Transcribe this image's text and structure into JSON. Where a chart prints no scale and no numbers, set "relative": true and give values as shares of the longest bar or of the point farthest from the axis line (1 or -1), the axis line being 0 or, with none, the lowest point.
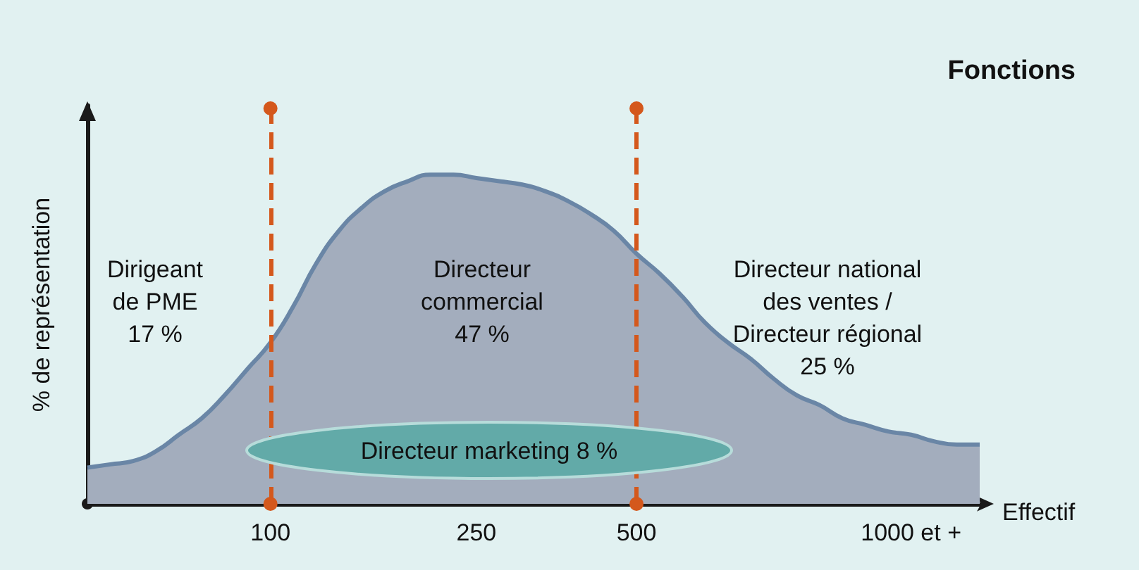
{
  "chart_data": {
    "type": "area",
    "title": "Fonctions",
    "xlabel": "Effectif",
    "ylabel": "% de représentation",
    "relative": true,
    "categories": [
      null,
      null,
      null,
      null,
      null,
      null,
      null,
      null,
      "100",
      null,
      null,
      null,
      null,
      null,
      null,
      null,
      null,
      "250",
      null,
      null,
      null,
      null,
      null,
      null,
      "500",
      null,
      null,
      null,
      null,
      null,
      null,
      null,
      null,
      null,
      null,
      null,
      "1000 et +",
      null,
      null,
      null
    ],
    "series": [
      {
        "color": "#a3adbd",
        "values": [
          0.11,
          0.12,
          0.13,
          0.16,
          0.21,
          0.26,
          0.33,
          0.41,
          0.49,
          0.6,
          0.73,
          0.83,
          0.9,
          0.95,
          0.98,
          1,
          1,
          0.99,
          0.98,
          0.97,
          0.95,
          0.92,
          0.88,
          0.83,
          0.76,
          0.7,
          0.63,
          0.55,
          0.49,
          0.44,
          0.38,
          0.33,
          0.3,
          0.26,
          0.24,
          0.22,
          0.21,
          0.19,
          0.18,
          0.18
        ]
      }
    ],
    "ref_lines": [
      {
        "axis": "x",
        "value": "100",
        "color": "#d4581c",
        "line_style": "dashed"
      },
      {
        "axis": "x",
        "value": "500",
        "color": "#d4581c",
        "line_style": "dashed"
      }
    ],
    "annotations": [
      "Dirigeant\nde PME\n17 %",
      "Directeur\ncommercial\n47 %",
      "Directeur national\ndes ventes /\nDirecteur régional\n25 %",
      "Directeur marketing 8 %"
    ]
  }
}
